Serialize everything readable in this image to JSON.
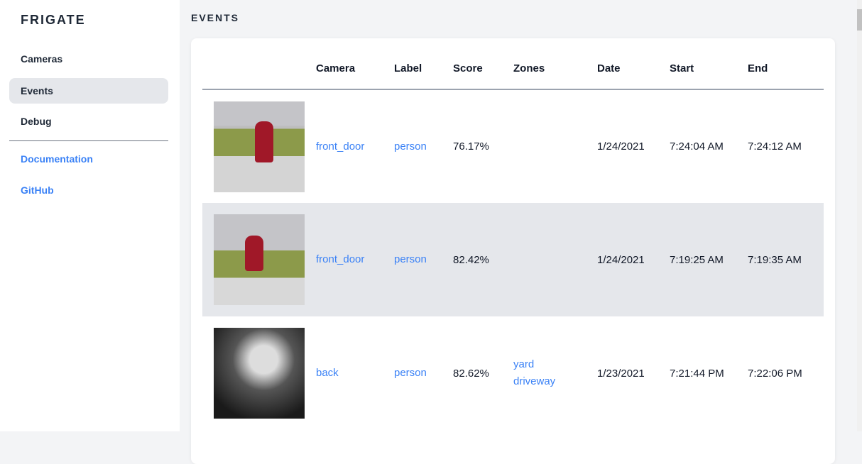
{
  "sidebar": {
    "brand": "FRIGATE",
    "items": [
      {
        "label": "Cameras"
      },
      {
        "label": "Events",
        "active": true
      },
      {
        "label": "Debug"
      }
    ],
    "links": [
      {
        "label": "Documentation"
      },
      {
        "label": "GitHub"
      }
    ]
  },
  "page": {
    "title": "EVENTS"
  },
  "table": {
    "headers": [
      "",
      "Camera",
      "Label",
      "Score",
      "Zones",
      "Date",
      "Start",
      "End"
    ],
    "rows": [
      {
        "camera": "front_door",
        "label": "person",
        "score": "76.17%",
        "zones": [
          "",
          ""
        ],
        "date": "1/24/2021",
        "start": "7:24:04 AM",
        "end": "7:24:12 AM"
      },
      {
        "camera": "front_door",
        "label": "person",
        "score": "82.42%",
        "zones": [
          "",
          ""
        ],
        "date": "1/24/2021",
        "start": "7:19:25 AM",
        "end": "7:19:35 AM"
      },
      {
        "camera": "back",
        "label": "person",
        "score": "82.62%",
        "zones": [
          "yard",
          "driveway"
        ],
        "date": "1/23/2021",
        "start": "7:21:44 PM",
        "end": "7:22:06 PM"
      }
    ]
  },
  "colors": {
    "accent": "#3b82f6",
    "active_bg": "#e5e7eb"
  }
}
